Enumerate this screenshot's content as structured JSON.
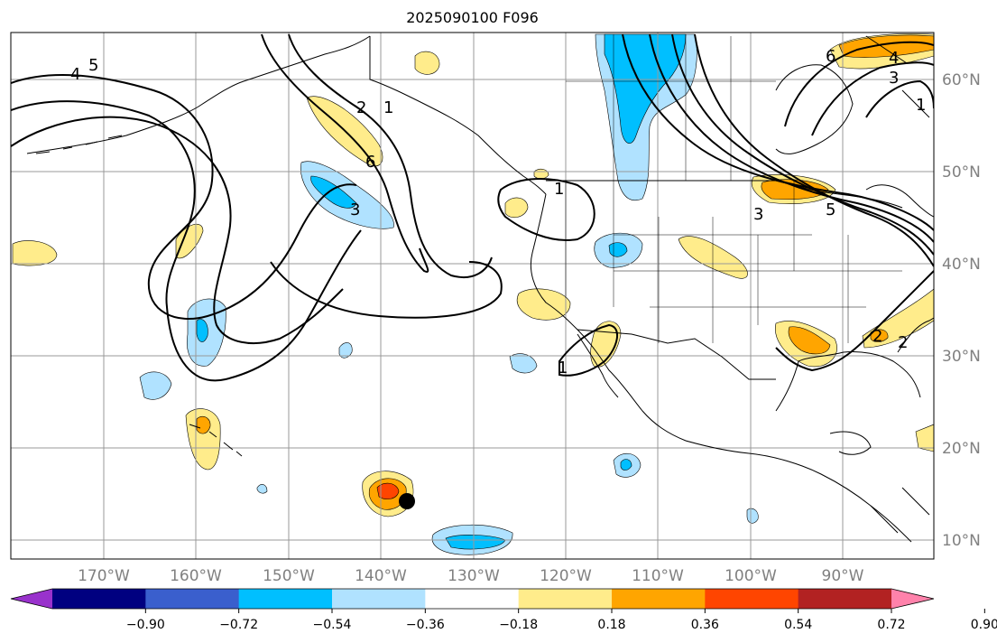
{
  "title": "2025090100 F096",
  "lat_labels": [
    "60°N",
    "50°N",
    "40°N",
    "30°N",
    "20°N",
    "10°N"
  ],
  "lon_labels": [
    "170°W",
    "160°W",
    "150°W",
    "140°W",
    "130°W",
    "120°W",
    "110°W",
    "100°W",
    "90°W"
  ],
  "colorbar": {
    "ticks": [
      "−0.90",
      "−0.72",
      "−0.54",
      "−0.36",
      "−0.18",
      "0.18",
      "0.36",
      "0.54",
      "0.72",
      "0.90"
    ],
    "colors": [
      "#9932cc",
      "#000080",
      "#3a5fcd",
      "#00bfff",
      "#b0e2ff",
      "#ffffff",
      "#ffec8b",
      "#ffa500",
      "#ff4500",
      "#b22222",
      "#ff82ab"
    ]
  },
  "contour_labels": [
    "4",
    "5",
    "2",
    "1",
    "6",
    "3",
    "1",
    "5",
    "3",
    "1",
    "2",
    "6",
    "4",
    "1",
    "3",
    "2"
  ],
  "colors": {
    "light_blue": "#b0e2ff",
    "blue": "#00bfff",
    "light_yellow": "#ffec8b",
    "orange": "#ffa500",
    "red_orange": "#ff4500"
  }
}
